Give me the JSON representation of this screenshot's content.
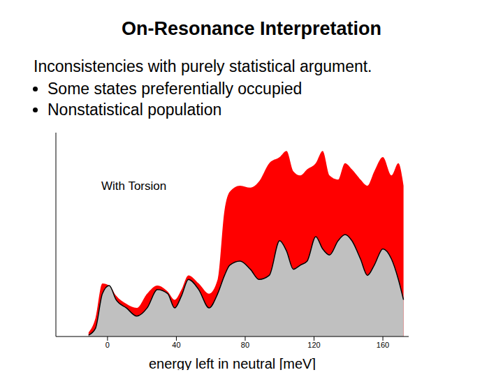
{
  "chart_data": {
    "type": "area",
    "title": "On-Resonance Interpretation",
    "subtitle": "Inconsistencies with purely statistical argument.",
    "bullets": [
      "Some states preferentially occupied",
      "Nonstatistical population"
    ],
    "annotation": "With Torsion",
    "x_label": "energy left in neutral [meV]",
    "x": [
      -11,
      -7,
      -3,
      1,
      5,
      11,
      17,
      23,
      29,
      35,
      39,
      43,
      47,
      53,
      59,
      64,
      68,
      71,
      77,
      83,
      88,
      94,
      100,
      104,
      108,
      112,
      116,
      121,
      125,
      129,
      134,
      138,
      142,
      147,
      151,
      155,
      160,
      165,
      169,
      172
    ],
    "series": [
      {
        "color": "#ff0000",
        "values": [
          2,
          9,
          26,
          25,
          20,
          16,
          14,
          21,
          25,
          22,
          18,
          23,
          30,
          26,
          21,
          28,
          62,
          71,
          74,
          73,
          76,
          85,
          88,
          91,
          81,
          79,
          82,
          85,
          91,
          79,
          77,
          85,
          82,
          77,
          74,
          81,
          88,
          79,
          85,
          74
        ]
      },
      {
        "color": "#c0c0c0",
        "values": [
          0.7,
          4,
          21,
          25,
          18,
          14,
          10,
          14,
          23,
          21,
          14,
          20,
          28,
          23,
          14,
          21,
          30,
          35,
          37,
          33,
          28,
          30,
          47,
          42,
          33,
          35,
          37,
          49,
          43,
          40,
          47,
          50,
          47,
          38,
          30,
          35,
          43,
          38,
          28,
          18
        ]
      }
    ],
    "xlim": [
      -30,
      175
    ],
    "xticks": [
      0,
      40,
      80,
      120,
      160
    ],
    "ylim": [
      0,
      100
    ],
    "tick_labels": "x",
    "legend": false,
    "grid": false
  }
}
